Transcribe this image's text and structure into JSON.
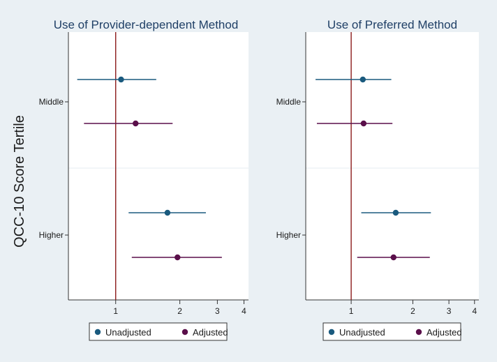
{
  "y_axis_title": "QCC-10 Score Tertile",
  "legend": {
    "items": [
      {
        "label": "Unadjusted",
        "color": "#1a5a7e"
      },
      {
        "label": "Adjusted",
        "color": "#5a0f4a"
      }
    ]
  },
  "colors": {
    "background": "#eaf0f4",
    "plot_area": "#ffffff",
    "reference_line": "#8b1a1a",
    "unadjusted": "#1a5a7e",
    "adjusted": "#5a0f4a"
  },
  "chart_data": [
    {
      "type": "scatter",
      "title": "Use of Provider-dependent Method",
      "xscale": "log",
      "xlim": [
        0.6,
        4.2
      ],
      "xticks": [
        1,
        2,
        3,
        4
      ],
      "reference_x": 1,
      "categories": [
        "Middle",
        "Higher"
      ],
      "series": [
        {
          "name": "Unadjusted",
          "points": [
            {
              "category": "Middle",
              "estimate": 1.06,
              "lower": 0.66,
              "upper": 1.55
            },
            {
              "category": "Higher",
              "estimate": 1.75,
              "lower": 1.15,
              "upper": 2.65
            }
          ]
        },
        {
          "name": "Adjusted",
          "points": [
            {
              "category": "Middle",
              "estimate": 1.24,
              "lower": 0.71,
              "upper": 1.85
            },
            {
              "category": "Higher",
              "estimate": 1.95,
              "lower": 1.19,
              "upper": 3.15
            }
          ]
        }
      ]
    },
    {
      "type": "scatter",
      "title": "Use of Preferred Method",
      "xscale": "log",
      "xlim": [
        0.6,
        4.2
      ],
      "xticks": [
        1,
        2,
        3,
        4
      ],
      "reference_x": 1,
      "categories": [
        "Middle",
        "Higher"
      ],
      "series": [
        {
          "name": "Unadjusted",
          "points": [
            {
              "category": "Middle",
              "estimate": 1.14,
              "lower": 0.67,
              "upper": 1.57
            },
            {
              "category": "Higher",
              "estimate": 1.65,
              "lower": 1.12,
              "upper": 2.45
            }
          ]
        },
        {
          "name": "Adjusted",
          "points": [
            {
              "category": "Middle",
              "estimate": 1.15,
              "lower": 0.68,
              "upper": 1.59
            },
            {
              "category": "Higher",
              "estimate": 1.61,
              "lower": 1.07,
              "upper": 2.42
            }
          ]
        }
      ]
    }
  ]
}
